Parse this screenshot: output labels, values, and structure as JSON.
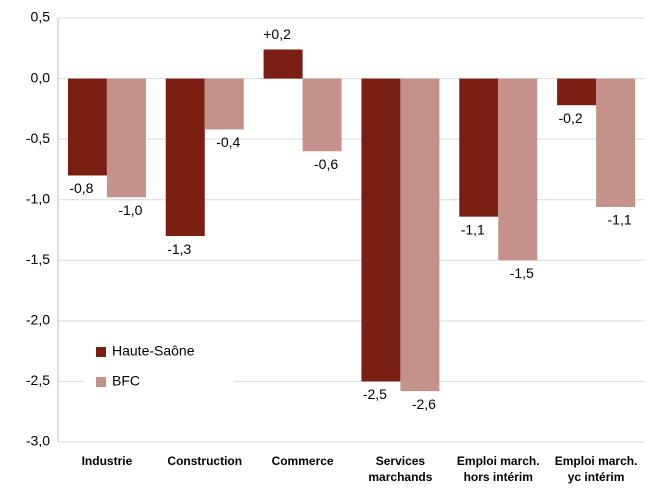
{
  "chart_data": {
    "type": "bar",
    "categories": [
      "Industrie",
      "Construction",
      "Commerce",
      "Services\nmarchands",
      "Emploi march.\nhors intérim",
      "Emploi march.\nyc intérim"
    ],
    "series": [
      {
        "name": "Haute-Saône",
        "color": "#7b1f12",
        "values": [
          -0.8,
          -1.3,
          0.24,
          -2.5,
          -1.14,
          -0.22
        ],
        "value_labels": [
          "-0,8",
          "-1,3",
          "+0,2",
          "-2,5",
          "-1,1",
          "-0,2"
        ]
      },
      {
        "name": "BFC",
        "color": "#c4928a",
        "values": [
          -0.98,
          -0.42,
          -0.6,
          -2.58,
          -1.5,
          -1.06
        ],
        "value_labels": [
          "-1,0",
          "-0,4",
          "-0,6",
          "-2,6",
          "-1,5",
          "-1,1"
        ]
      }
    ],
    "ylim": [
      -3,
      0.5
    ],
    "yticks": [
      {
        "value": 0.5,
        "label": "0,5"
      },
      {
        "value": 0,
        "label": "0,0"
      },
      {
        "value": -0.5,
        "label": "-0,5"
      },
      {
        "value": -1,
        "label": "-1,0"
      },
      {
        "value": -1.5,
        "label": "-1,5"
      },
      {
        "value": -2,
        "label": "-2,0"
      },
      {
        "value": -2.5,
        "label": "-2,5"
      },
      {
        "value": -3,
        "label": "-3,0"
      }
    ],
    "grid": true,
    "legend": "lower-left"
  }
}
